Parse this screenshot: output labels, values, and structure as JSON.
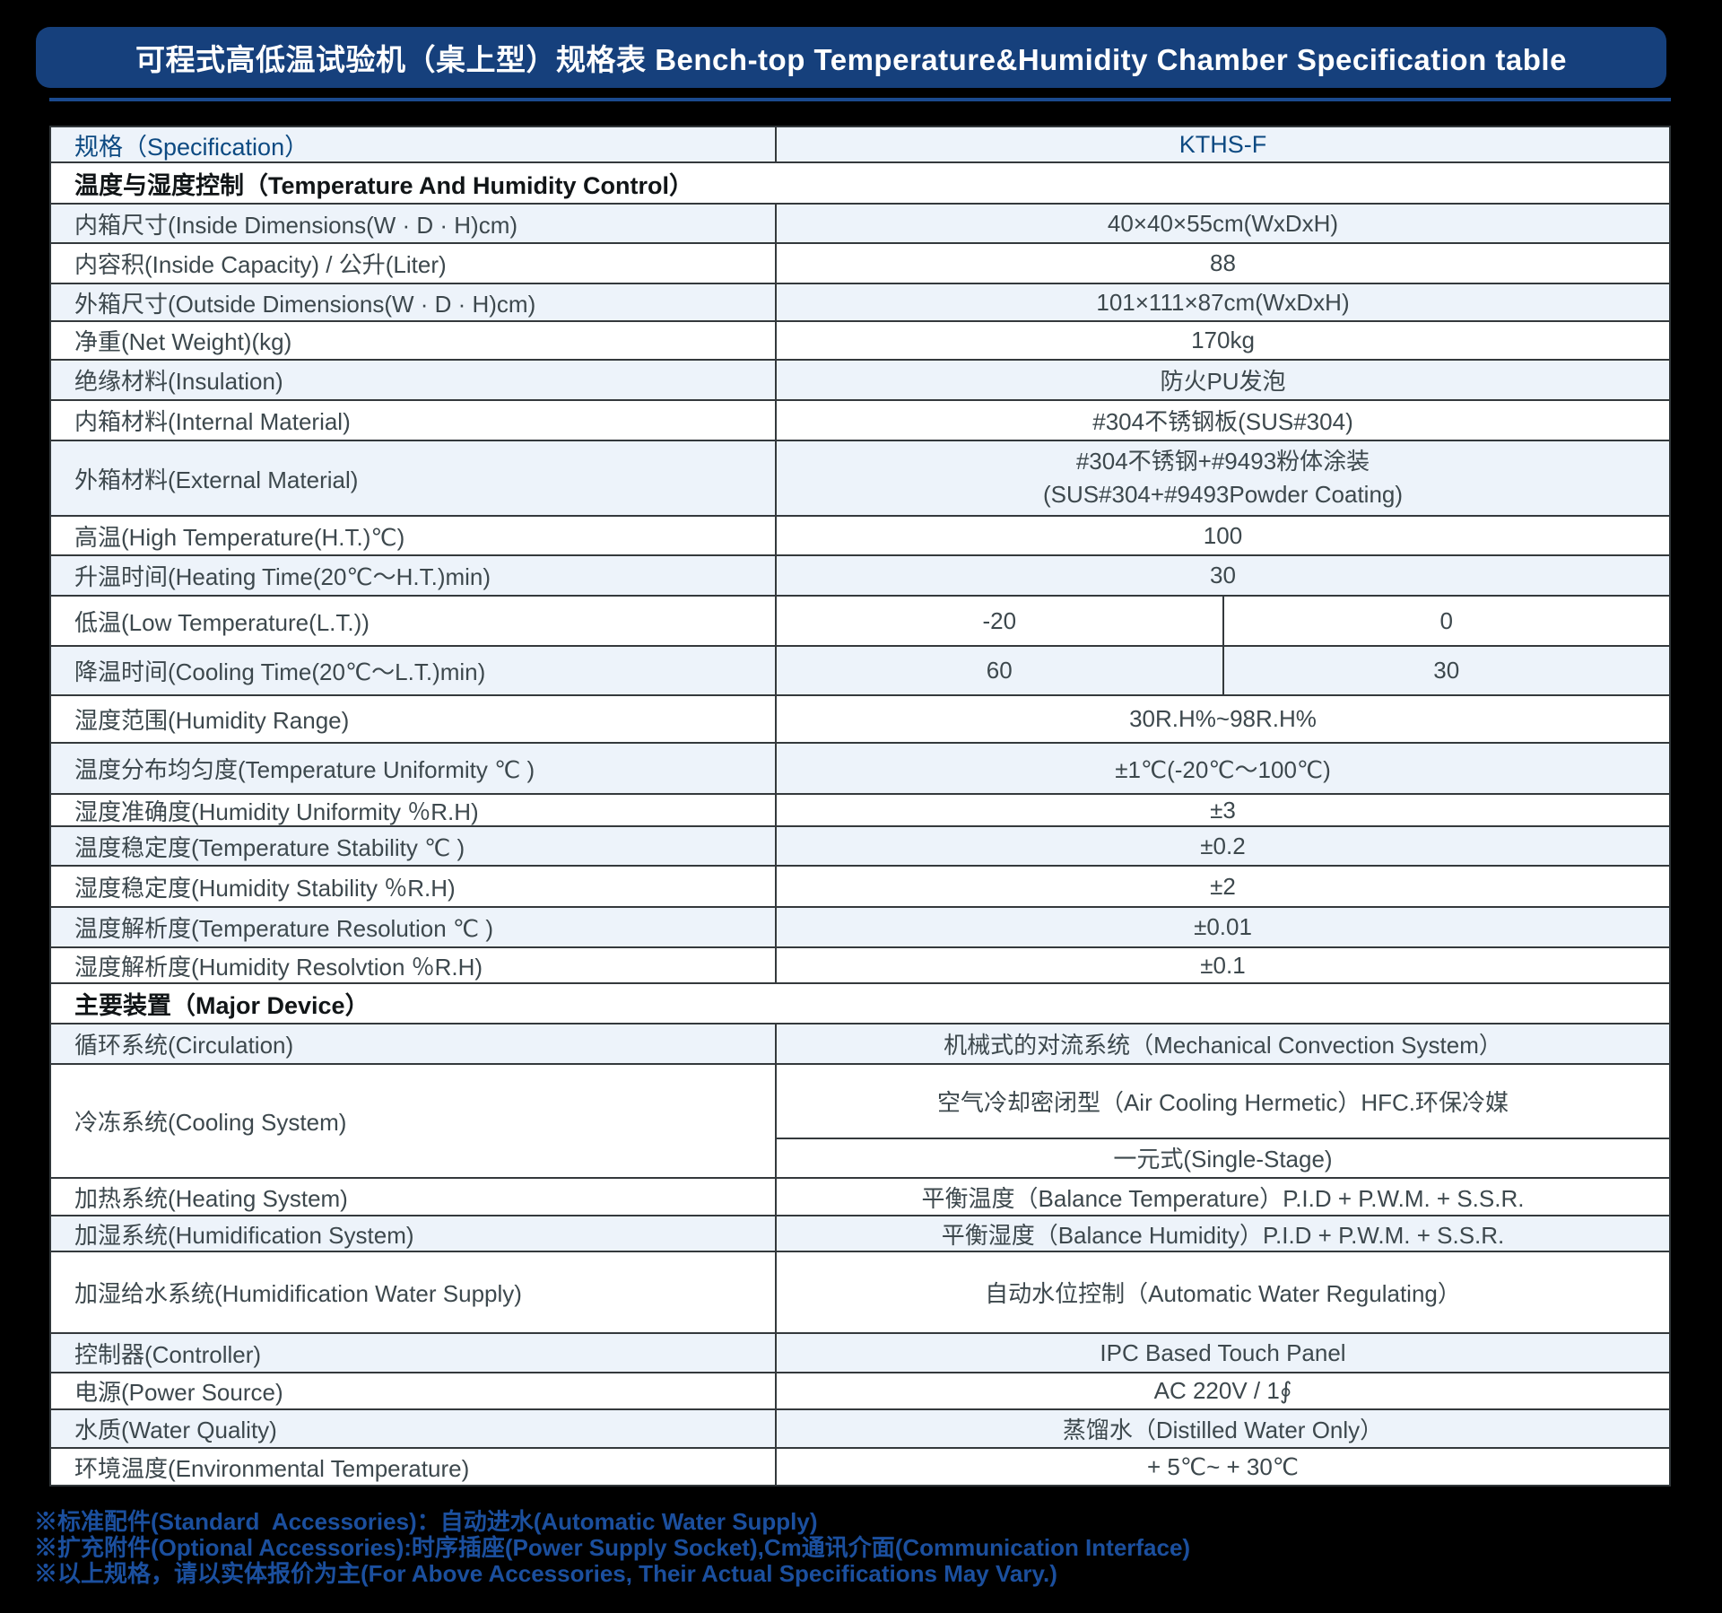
{
  "title_bar": {
    "text": "可程式高低温试验机（桌上型）规格表 Bench-top Temperature&Humidity Chamber Specification table",
    "bg_color": "#16407c",
    "text_color": "#ffffff"
  },
  "table": {
    "header": {
      "label": "规格（Specification）",
      "value": "KTHS-F"
    },
    "rows": [
      {
        "id": "section-temp-humidity-control",
        "kind": "section",
        "label": "温度与湿度控制（Temperature And Humidity Control）"
      },
      {
        "id": "inside-dimensions",
        "kind": "simple",
        "label": "内箱尺寸(Inside Dimensions(W · D · H)cm)",
        "value": "40×40×55cm(WxDxH)"
      },
      {
        "id": "inside-capacity",
        "kind": "simple",
        "label": "内容积(Inside Capacity) / 公升(Liter)",
        "value": "88"
      },
      {
        "id": "outside-dimensions",
        "kind": "simple",
        "label": "外箱尺寸(Outside Dimensions(W · D · H)cm)",
        "value": "101×111×87cm(WxDxH)"
      },
      {
        "id": "net-weight",
        "kind": "simple",
        "label": "净重(Net Weight)(kg)",
        "value": "170kg"
      },
      {
        "id": "insulation",
        "kind": "simple",
        "label": "绝缘材料(Insulation)",
        "value": "防火PU发泡"
      },
      {
        "id": "internal-material",
        "kind": "simple",
        "label": "内箱材料(Internal Material)",
        "value": "#304不锈钢板(SUS#304)"
      },
      {
        "id": "external-material",
        "kind": "twoline",
        "label": "外箱材料(External Material)",
        "value_lines": [
          "#304不锈钢+#9493粉体涂装",
          "(SUS#304+#9493Powder Coating)"
        ]
      },
      {
        "id": "high-temperature",
        "kind": "simple",
        "label": "高温(High Temperature(H.T.)℃)",
        "value": "100"
      },
      {
        "id": "heating-time",
        "kind": "simple",
        "label": "升温时间(Heating Time(20℃～H.T.)min)",
        "value": "30"
      },
      {
        "id": "low-temperature",
        "kind": "split",
        "label": "低温(Low Temperature(L.T.))",
        "values": [
          "-20",
          "0"
        ]
      },
      {
        "id": "cooling-time",
        "kind": "split",
        "label": "降温时间(Cooling Time(20℃～L.T.)min)",
        "values": [
          "60",
          "30"
        ]
      },
      {
        "id": "humidity-range",
        "kind": "simple",
        "label": "湿度范围(Humidity Range)",
        "value": "30R.H%~98R.H%"
      },
      {
        "id": "temperature-uniformity",
        "kind": "simple",
        "label": "温度分布均匀度(Temperature Uniformity ℃ )",
        "value": "±1℃(-20℃～100℃)"
      },
      {
        "id": "humidity-uniformity",
        "kind": "simple",
        "label": "湿度准确度(Humidity Uniformity ％R.H)",
        "value": "±3"
      },
      {
        "id": "temperature-stability",
        "kind": "simple",
        "label": "温度稳定度(Temperature Stability ℃ )",
        "value": "±0.2"
      },
      {
        "id": "humidity-stability",
        "kind": "simple",
        "label": "湿度稳定度(Humidity Stability ％R.H)",
        "value": "±2"
      },
      {
        "id": "temperature-resolution",
        "kind": "simple",
        "label": "温度解析度(Temperature Resolution ℃ )",
        "value": "±0.01"
      },
      {
        "id": "humidity-resolution",
        "kind": "simple",
        "label": "湿度解析度(Humidity Resolvtion ％R.H)",
        "value": "±0.1"
      },
      {
        "id": "section-major-device",
        "kind": "section",
        "label": "主要装置（Major Device）"
      },
      {
        "id": "circulation",
        "kind": "simple",
        "label": "循环系统(Circulation)",
        "value": "机械式的对流系统（Mechanical Convection System）"
      },
      {
        "id": "cooling-system",
        "kind": "group",
        "label": "冷冻系统(Cooling System)",
        "values": [
          "空气冷却密闭型（Air Cooling Hermetic）HFC.环保冷媒",
          "一元式(Single-Stage)"
        ]
      },
      {
        "id": "heating-system",
        "kind": "simple",
        "label": "加热系统(Heating System)",
        "value": "平衡温度（Balance Temperature）P.I.D + P.W.M. + S.S.R."
      },
      {
        "id": "humidification-system",
        "kind": "simple",
        "label": "加湿系统(Humidification System)",
        "value": "平衡湿度（Balance Humidity）P.I.D + P.W.M. + S.S.R."
      },
      {
        "id": "humidification-water-supply",
        "kind": "simple",
        "label": "加湿给水系统(Humidification Water Supply)",
        "value": "自动水位控制（Automatic Water Regulating）"
      },
      {
        "id": "controller",
        "kind": "simple",
        "label": "控制器(Controller)",
        "value": "IPC Based Touch Panel"
      },
      {
        "id": "power-source",
        "kind": "simple",
        "label": "电源(Power Source)",
        "value": "AC 220V / 1∮"
      },
      {
        "id": "water-quality",
        "kind": "simple",
        "label": "水质(Water Quality)",
        "value": "蒸馏水（Distilled Water Only）"
      },
      {
        "id": "environmental-temperature",
        "kind": "simple",
        "label": "环境温度(Environmental Temperature)",
        "value": "+ 5℃~ + 30℃"
      }
    ]
  },
  "footer": {
    "notes": [
      "※标准配件(Standard  Accessories)：自动进水(Automatic Water Supply)",
      "※扩充附件(Optional Accessories):时序插座(Power Supply Socket),Cm通讯介面(Communication Interface)",
      "※以上规格，请以实体报价为主(For Above Accessories, Their Actual Specifications May Vary.)"
    ]
  },
  "colors": {
    "page_background": "#000000",
    "title_bar": "#16407c",
    "separator_line": "#1b4a8f",
    "row_tint": "#edf3fa",
    "table_border": "#34393c",
    "header_text": "#0d4a82",
    "body_text": "#3d484d",
    "section_text": "#111517",
    "footer_text": "#1b4f9e"
  }
}
